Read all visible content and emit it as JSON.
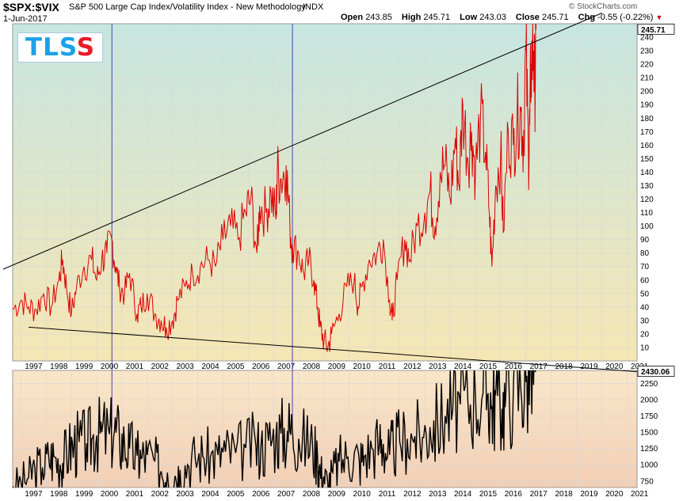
{
  "header": {
    "symbol": "$SPX:$VIX",
    "title": "S&P 500 Large Cap Index/Volatility Index - New Methodology",
    "exchange": "INDX",
    "date": "1-Jun-2017",
    "source": "© StockCharts.com",
    "open_label": "Open",
    "open_value": "243.85",
    "high_label": "High",
    "high_value": "245.71",
    "low_label": "Low",
    "low_value": "243.03",
    "close_label": "Close",
    "close_value": "245.71",
    "chg_label": "Chg",
    "chg_value": "-0.55 (-0.22%)",
    "chg_arrow": "▼"
  },
  "logo": {
    "letters": [
      "T",
      "L",
      "S",
      "S"
    ]
  },
  "colors": {
    "ratio_line": "#dd0000",
    "spx_line": "#000000",
    "vertical_marker": "#3333aa",
    "trendline": "#000000",
    "bg_top_top": "#c6e6e1",
    "bg_top_bottom": "#f6e6b4",
    "bg_bottom_top": "#f9e6c8",
    "bg_bottom_bottom": "#f2cfb6"
  },
  "chart_data": [
    {
      "type": "line",
      "name": "$SPX:$VIX",
      "title": "S&P 500 Large Cap Index/Volatility Index - New Methodology",
      "x_range": [
        1996.67,
        2021.4
      ],
      "ylim": [
        0,
        250
      ],
      "y_ticks": [
        10,
        20,
        30,
        40,
        50,
        60,
        70,
        80,
        90,
        100,
        110,
        120,
        130,
        140,
        150,
        160,
        170,
        180,
        190,
        200,
        210,
        220,
        230,
        240
      ],
      "x_ticks": [
        "1997",
        "1998",
        "1999",
        "2000",
        "2001",
        "2002",
        "2003",
        "2004",
        "2005",
        "2006",
        "2007",
        "2008",
        "2009",
        "2010",
        "2011",
        "2012",
        "2013",
        "2014",
        "2015",
        "2016",
        "2017",
        "2018",
        "2019",
        "2020",
        "2021"
      ],
      "last_value_label": "245.71",
      "x": [
        1996.67,
        1997.0,
        1997.3,
        1997.6,
        1997.9,
        1998.2,
        1998.5,
        1998.65,
        1998.8,
        1999.0,
        1999.2,
        1999.5,
        1999.8,
        2000.0,
        2000.2,
        2000.4,
        2000.6,
        2000.75,
        2000.9,
        2001.1,
        2001.3,
        2001.6,
        2001.75,
        2002.0,
        2002.3,
        2002.55,
        2002.75,
        2003.0,
        2003.2,
        2003.5,
        2003.8,
        2004.1,
        2004.4,
        2004.7,
        2005.0,
        2005.3,
        2005.6,
        2005.9,
        2006.1,
        2006.35,
        2006.45,
        2006.7,
        2006.9,
        2007.1,
        2007.15,
        2007.3,
        2007.5,
        2007.65,
        2007.75,
        2008.0,
        2008.2,
        2008.4,
        2008.6,
        2008.75,
        2008.85,
        2009.0,
        2009.15,
        2009.3,
        2009.6,
        2009.9,
        2010.2,
        2010.35,
        2010.5,
        2010.8,
        2011.1,
        2011.35,
        2011.6,
        2011.7,
        2011.9,
        2012.2,
        2012.4,
        2012.7,
        2013.0,
        2013.2,
        2013.4,
        2013.6,
        2013.8,
        2014.0,
        2014.2,
        2014.35,
        2014.5,
        2014.7,
        2014.85,
        2015.0,
        2015.2,
        2015.4,
        2015.55,
        2015.65,
        2015.8,
        2016.0,
        2016.1,
        2016.3,
        2016.5,
        2016.65,
        2016.8,
        2016.9,
        2017.0,
        2017.1,
        2017.15,
        2017.2,
        2017.3,
        2017.35,
        2017.4
      ],
      "values": [
        38,
        45,
        40,
        38,
        50,
        40,
        60,
        75,
        55,
        35,
        55,
        70,
        75,
        60,
        75,
        80,
        90,
        70,
        55,
        50,
        65,
        35,
        40,
        50,
        35,
        30,
        25,
        30,
        45,
        55,
        65,
        70,
        75,
        70,
        90,
        100,
        90,
        110,
        120,
        80,
        115,
        110,
        125,
        105,
        140,
        135,
        145,
        100,
        85,
        80,
        65,
        75,
        60,
        40,
        25,
        15,
        10,
        20,
        35,
        55,
        60,
        40,
        55,
        75,
        80,
        90,
        45,
        30,
        60,
        90,
        75,
        100,
        110,
        125,
        100,
        140,
        145,
        120,
        165,
        130,
        190,
        150,
        170,
        140,
        180,
        155,
        110,
        70,
        130,
        155,
        95,
        170,
        160,
        180,
        185,
        160,
        230,
        150,
        175,
        220,
        230,
        200,
        245.71
      ]
    },
    {
      "type": "line",
      "name": "$SPX",
      "x_range": [
        1996.67,
        2021.4
      ],
      "ylim": [
        650,
        2450
      ],
      "y_ticks": [
        750,
        1000,
        1250,
        1500,
        1750,
        2000,
        2250
      ],
      "x_ticks": [
        "1997",
        "1998",
        "1999",
        "2000",
        "2001",
        "2002",
        "2003",
        "2004",
        "2005",
        "2006",
        "2007",
        "2008",
        "2009",
        "2010",
        "2011",
        "2012",
        "2013",
        "2014",
        "2015",
        "2016",
        "2017",
        "2018",
        "2019",
        "2020",
        "2021"
      ],
      "last_value_label": "2430.06",
      "x": [
        1996.67,
        1997.0,
        1997.3,
        1997.55,
        1997.85,
        1998.1,
        1998.3,
        1998.55,
        1998.7,
        1998.9,
        1999.1,
        1999.3,
        1999.6,
        1999.8,
        2000.0,
        2000.2,
        2000.5,
        2000.7,
        2000.9,
        2001.1,
        2001.3,
        2001.6,
        2001.75,
        2002.0,
        2002.3,
        2002.55,
        2002.8,
        2003.1,
        2003.3,
        2003.6,
        2003.9,
        2004.2,
        2004.5,
        2004.8,
        2005.1,
        2005.5,
        2005.9,
        2006.3,
        2006.5,
        2006.8,
        2007.1,
        2007.3,
        2007.55,
        2007.75,
        2008.0,
        2008.3,
        2008.55,
        2008.75,
        2008.85,
        2009.0,
        2009.15,
        2009.35,
        2009.6,
        2009.9,
        2010.2,
        2010.4,
        2010.6,
        2010.9,
        2011.2,
        2011.35,
        2011.6,
        2011.75,
        2012.0,
        2012.3,
        2012.6,
        2012.9,
        2013.2,
        2013.5,
        2013.8,
        2014.1,
        2014.4,
        2014.7,
        2015.0,
        2015.3,
        2015.5,
        2015.65,
        2015.8,
        2016.05,
        2016.2,
        2016.5,
        2016.8,
        2017.0,
        2017.2,
        2017.4
      ],
      "values": [
        670,
        740,
        800,
        950,
        960,
        1100,
        1130,
        1000,
        1100,
        1230,
        1300,
        1350,
        1330,
        1400,
        1450,
        1500,
        1470,
        1510,
        1400,
        1320,
        1250,
        1140,
        1100,
        1150,
        1050,
        900,
        880,
        830,
        920,
        1000,
        1100,
        1130,
        1120,
        1150,
        1200,
        1180,
        1260,
        1300,
        1260,
        1370,
        1450,
        1480,
        1520,
        1530,
        1400,
        1350,
        1280,
        1100,
        900,
        820,
        720,
        880,
        1050,
        1100,
        1180,
        1050,
        1130,
        1250,
        1340,
        1320,
        1150,
        1280,
        1350,
        1400,
        1440,
        1420,
        1580,
        1640,
        1750,
        1840,
        1930,
        1970,
        2060,
        2100,
        2100,
        1900,
        2070,
        1860,
        2040,
        2170,
        2150,
        2270,
        2380,
        2430.06
      ]
    }
  ]
}
